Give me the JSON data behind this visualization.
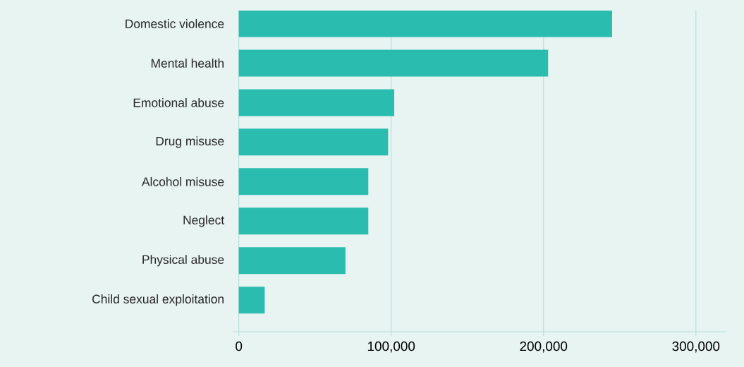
{
  "chart_data": {
    "type": "bar",
    "orientation": "horizontal",
    "categories": [
      "Domestic violence",
      "Mental health",
      "Emotional abuse",
      "Drug misuse",
      "Alcohol misuse",
      "Neglect",
      "Physical abuse",
      "Child sexual exploitation"
    ],
    "values": [
      245000,
      203000,
      102000,
      98000,
      85000,
      85000,
      70000,
      17000
    ],
    "color": "#2bbcb0",
    "xlim": [
      -4000,
      320000
    ],
    "xticks": [
      0,
      {
        "value": 100000,
        "label": "100,000"
      },
      {
        "value": 200000,
        "label": "200,000"
      },
      {
        "value": 300000,
        "label": "300,000"
      }
    ],
    "grid": "x"
  }
}
